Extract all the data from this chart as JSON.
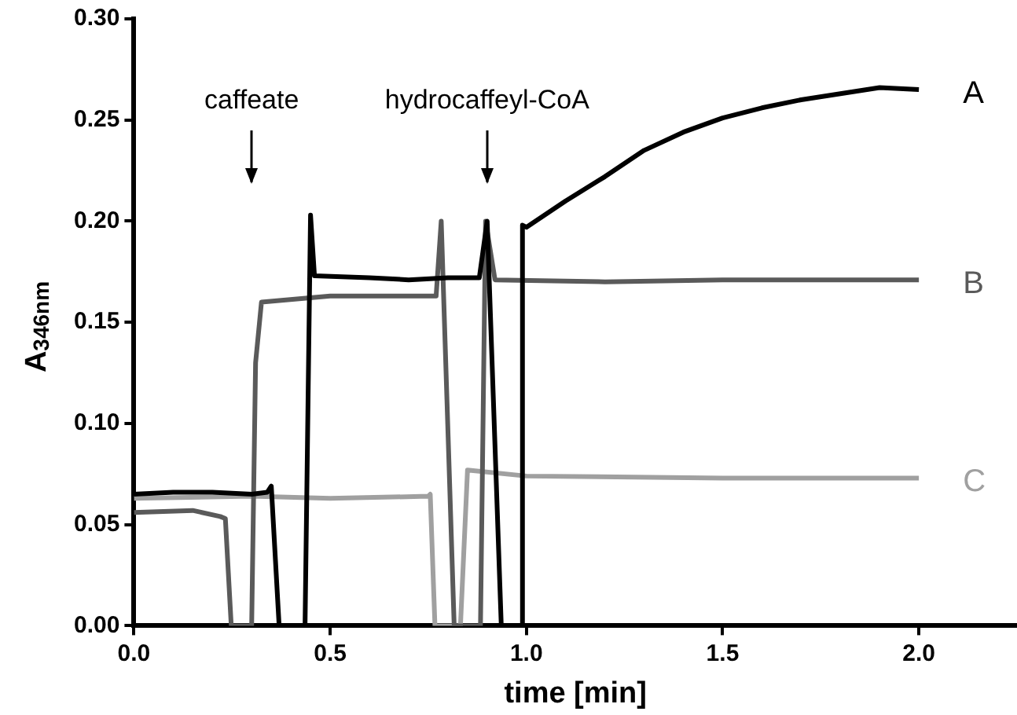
{
  "chart_data": {
    "type": "line",
    "xlabel": "time [min]",
    "ylabel": "A$_{346nm}$",
    "xlim": [
      0,
      2.25
    ],
    "xticks": [
      {
        "value": 0,
        "label": "0.0"
      },
      0.5,
      {
        "value": 1,
        "label": "1.0"
      },
      1.5,
      {
        "value": 2,
        "label": "2.0"
      }
    ],
    "ylim": [
      0,
      0.3
    ],
    "yticks": [
      {
        "value": 0,
        "label": "0.00"
      },
      0.05,
      {
        "value": 0.1,
        "label": "0.10"
      },
      0.15,
      {
        "value": 0.2,
        "label": "0.20"
      },
      0.25,
      {
        "value": 0.3,
        "label": "0.30"
      }
    ],
    "grid": false,
    "legend": false,
    "marker": "none",
    "line_style": "solid",
    "ref_lines": [
      {
        "axis": "x",
        "value": 0.3,
        "label": "caffeate"
      },
      {
        "axis": "x",
        "value": 0.9,
        "label": "hydrocaffeyl-CoA"
      }
    ],
    "series": [
      {
        "name": "A",
        "color": "#000000",
        "x": [
          0,
          0.1,
          0.2,
          0.3,
          0.34,
          0.35,
          0.37,
          0.436,
          0.45,
          0.46,
          0.6,
          0.7,
          0.8,
          0.88,
          0.9,
          0.936,
          0.99,
          0.99,
          1.0,
          1.1,
          1.2,
          1.3,
          1.4,
          1.5,
          1.6,
          1.7,
          1.8,
          1.9,
          2.0
        ],
        "values": [
          0.065,
          0.066,
          0.066,
          0.065,
          0.066,
          0.069,
          0,
          0,
          0.203,
          0.173,
          0.172,
          0.171,
          0.172,
          0.172,
          0.2,
          0,
          0,
          0.198,
          0.197,
          0.21,
          0.222,
          0.235,
          0.244,
          0.251,
          0.256,
          0.26,
          0.263,
          0.266,
          0.265
        ]
      },
      {
        "name": "B",
        "color": "#5a5a5a",
        "x": [
          0,
          0.15,
          0.22,
          0.233,
          0.248,
          0.3,
          0.31,
          0.325,
          0.5,
          0.77,
          0.783,
          0.816,
          0.883,
          0.896,
          0.92,
          1.2,
          1.5,
          1.8,
          2.0
        ],
        "values": [
          0.056,
          0.057,
          0.054,
          0.053,
          0,
          0,
          0.13,
          0.16,
          0.163,
          0.163,
          0.2,
          0,
          0,
          0.2,
          0.171,
          0.17,
          0.171,
          0.171,
          0.171
        ]
      },
      {
        "name": "C",
        "color": "#a0a0a0",
        "x": [
          0,
          0.3,
          0.5,
          0.75,
          0.755,
          0.767,
          0.832,
          0.85,
          1.0,
          1.5,
          2.0
        ],
        "values": [
          0.063,
          0.064,
          0.063,
          0.064,
          0.065,
          0,
          0,
          0.077,
          0.074,
          0.073,
          0.073
        ]
      }
    ]
  }
}
